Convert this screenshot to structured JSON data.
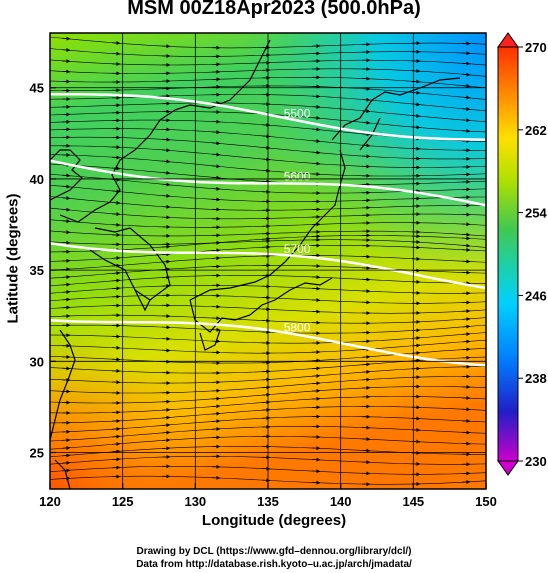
{
  "title": "MSM 00Z18Apr2023 (500.0hPa)",
  "x_axis": {
    "title": "Longitude (degrees)",
    "range": [
      120,
      150
    ],
    "ticks": [
      "120",
      "125",
      "130",
      "135",
      "140",
      "145",
      "150"
    ]
  },
  "y_axis": {
    "title": "Latitude  (degrees)",
    "range": [
      23,
      48
    ],
    "ticks": [
      "25",
      "30",
      "35",
      "40",
      "45"
    ]
  },
  "colorbar": {
    "ticks": [
      "230",
      "238",
      "246",
      "254",
      "262",
      "270"
    ],
    "range": [
      230,
      270
    ],
    "colors": [
      "#cc00cc",
      "#2020c8",
      "#0080ff",
      "#00d0ff",
      "#20d0a0",
      "#40c850",
      "#b0e000",
      "#ffe000",
      "#ff9000",
      "#ff3000"
    ]
  },
  "contours": [
    {
      "label": "5600",
      "lat_at_137": 39.6
    },
    {
      "label": "5700",
      "lat_at_137": 35.4
    },
    {
      "label": "5800",
      "lat_at_137": 31.2
    },
    {
      "label": "5500",
      "lat_at_137": 43.3
    }
  ],
  "credits": {
    "line1": "Drawing by DCL (https://www.gfd–dennou.org/library/dcl/)",
    "line2": "Data from http://database.rish.kyoto–u.ac.jp/arch/jmadata/"
  }
}
